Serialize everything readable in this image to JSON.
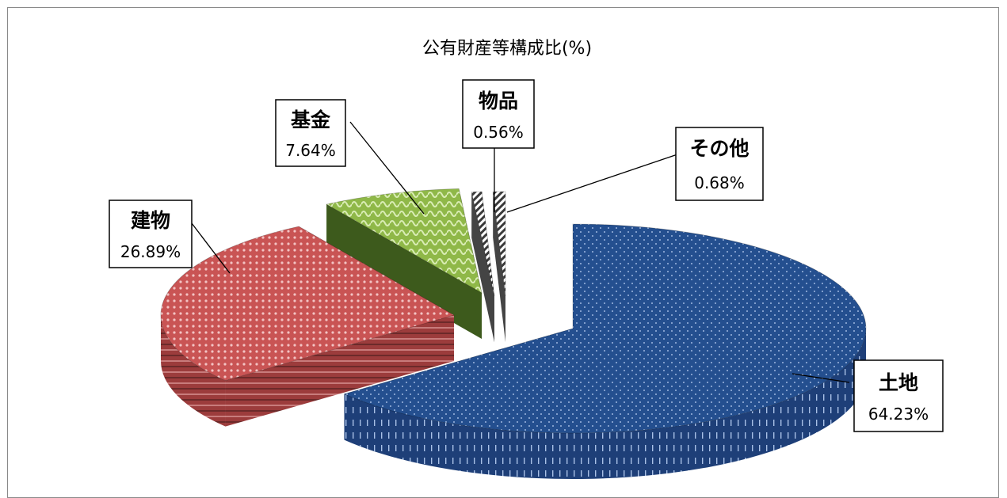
{
  "chart_data": {
    "type": "pie",
    "title": "公有財産等構成比(%)",
    "slices": [
      {
        "name": "土地",
        "value": 64.23,
        "label": "64.23%",
        "color": "#244f8f",
        "side": "#1a3a6c"
      },
      {
        "name": "建物",
        "value": 26.89,
        "label": "26.89%",
        "color": "#c64d4d",
        "side": "#8e3434"
      },
      {
        "name": "基金",
        "value": 7.64,
        "label": "7.64%",
        "color": "#8bb23e",
        "side": "#3f5a1c"
      },
      {
        "name": "物品",
        "value": 0.56,
        "label": "0.56%",
        "color": "#b0b0b0",
        "side": "#4a4a4a"
      },
      {
        "name": "その他",
        "value": 0.68,
        "label": "0.68%",
        "color": "#d0d0d0",
        "side": "#3a3a3a"
      }
    ]
  }
}
